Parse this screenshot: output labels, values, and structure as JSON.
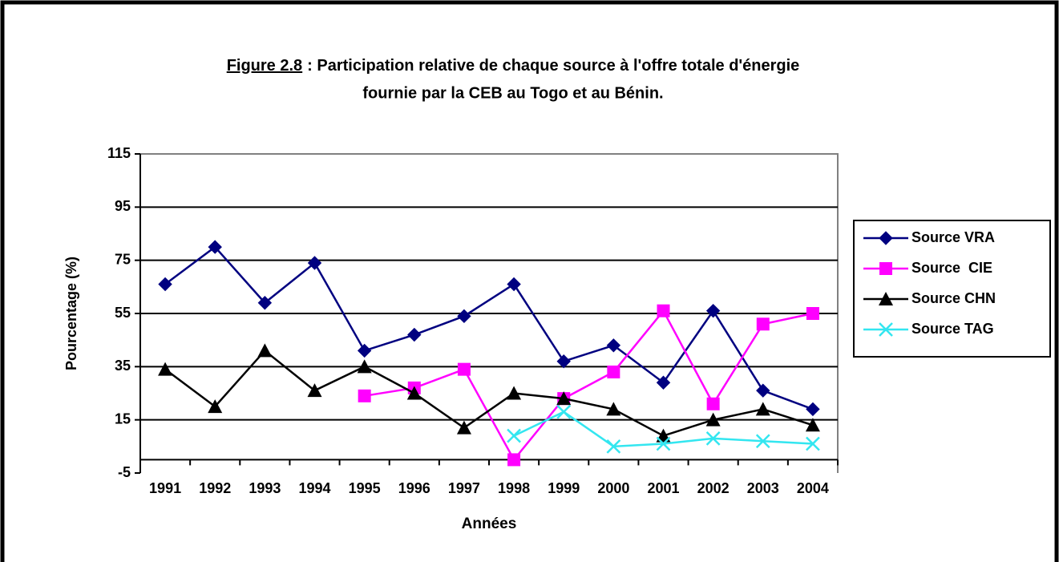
{
  "chart_data": {
    "type": "line",
    "title_label": "Figure 2.8",
    "title": [
      ": Participation relative de chaque source à l'offre totale d'énergie",
      "fournie par la CEB au Togo et au Bénin."
    ],
    "xlabel": "Années",
    "ylabel": "Pourcentage (%)",
    "categories": [
      "1991",
      "1992",
      "1993",
      "1994",
      "1995",
      "1996",
      "1997",
      "1998",
      "1999",
      "2000",
      "2001",
      "2002",
      "2003",
      "2004"
    ],
    "series": [
      {
        "name": "Source VRA",
        "color": "#000080",
        "marker": "diamond",
        "values": [
          66,
          80,
          59,
          74,
          41,
          47,
          54,
          66,
          37,
          43,
          29,
          56,
          26,
          19
        ]
      },
      {
        "name": "Source  CIE",
        "color": "#ff00ff",
        "marker": "square",
        "values": [
          null,
          null,
          null,
          null,
          24,
          27,
          34,
          0,
          23,
          33,
          56,
          21,
          51,
          55
        ]
      },
      {
        "name": "Source CHN",
        "color": "#000000",
        "marker": "triangle",
        "values": [
          34,
          20,
          41,
          26,
          35,
          25,
          12,
          25,
          23,
          19,
          9,
          15,
          19,
          13
        ]
      },
      {
        "name": "Source TAG",
        "color": "#33e6f0",
        "marker": "x",
        "values": [
          null,
          null,
          null,
          null,
          null,
          null,
          null,
          9,
          18,
          5,
          6,
          8,
          7,
          6
        ]
      }
    ],
    "ylim": [
      -5,
      115
    ],
    "yticks": [
      -5,
      15,
      35,
      55,
      75,
      95,
      115
    ],
    "grid": true,
    "legend": "right"
  }
}
